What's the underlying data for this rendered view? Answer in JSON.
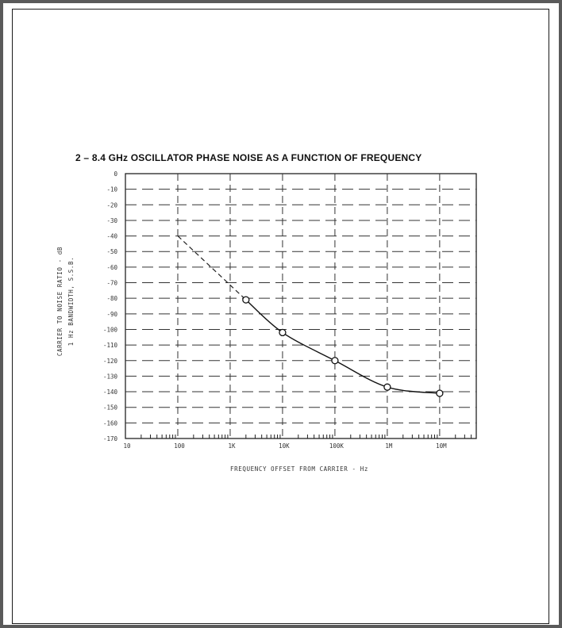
{
  "chart_data": {
    "type": "line",
    "title": "2 – 8.4 GHz OSCILLATOR PHASE NOISE AS A FUNCTION OF FREQUENCY",
    "xlabel": "FREQUENCY OFFSET FROM CARRIER - Hz",
    "ylabel_line1": "CARRIER TO NOISE RATIO - dB",
    "ylabel_line2": "1 Hz BANDWIDTH, S.S.B.",
    "x_scale": "log",
    "xlim": [
      10,
      50000000
    ],
    "ylim": [
      -170,
      0
    ],
    "x_ticks": [
      {
        "value": 10,
        "label": "10"
      },
      {
        "value": 100,
        "label": "100"
      },
      {
        "value": 1000,
        "label": "1K"
      },
      {
        "value": 10000,
        "label": "10K"
      },
      {
        "value": 100000,
        "label": "100K"
      },
      {
        "value": 1000000,
        "label": "1M"
      },
      {
        "value": 10000000,
        "label": "10M"
      }
    ],
    "y_ticks": [
      {
        "value": 0,
        "label": "0"
      },
      {
        "value": -10,
        "label": "-10"
      },
      {
        "value": -20,
        "label": "-20"
      },
      {
        "value": -30,
        "label": "-30"
      },
      {
        "value": -40,
        "label": "-40"
      },
      {
        "value": -50,
        "label": "-50"
      },
      {
        "value": -60,
        "label": "-60"
      },
      {
        "value": -70,
        "label": "-70"
      },
      {
        "value": -80,
        "label": "-80"
      },
      {
        "value": -90,
        "label": "-90"
      },
      {
        "value": -100,
        "label": "-100"
      },
      {
        "value": -110,
        "label": "-110"
      },
      {
        "value": -120,
        "label": "-120"
      },
      {
        "value": -130,
        "label": "-130"
      },
      {
        "value": -140,
        "label": "-140"
      },
      {
        "value": -150,
        "label": "-150"
      },
      {
        "value": -160,
        "label": "-160"
      },
      {
        "value": -170,
        "label": "-170"
      }
    ],
    "grid": true,
    "series": [
      {
        "style": "dashed",
        "x": [
          100,
          2000
        ],
        "y": [
          -40,
          -81
        ]
      },
      {
        "style": "solid",
        "markers": "circle",
        "x": [
          2000,
          10000,
          100000,
          1000000,
          10000000
        ],
        "y": [
          -81,
          -102,
          -120,
          -137,
          -141
        ]
      }
    ]
  }
}
